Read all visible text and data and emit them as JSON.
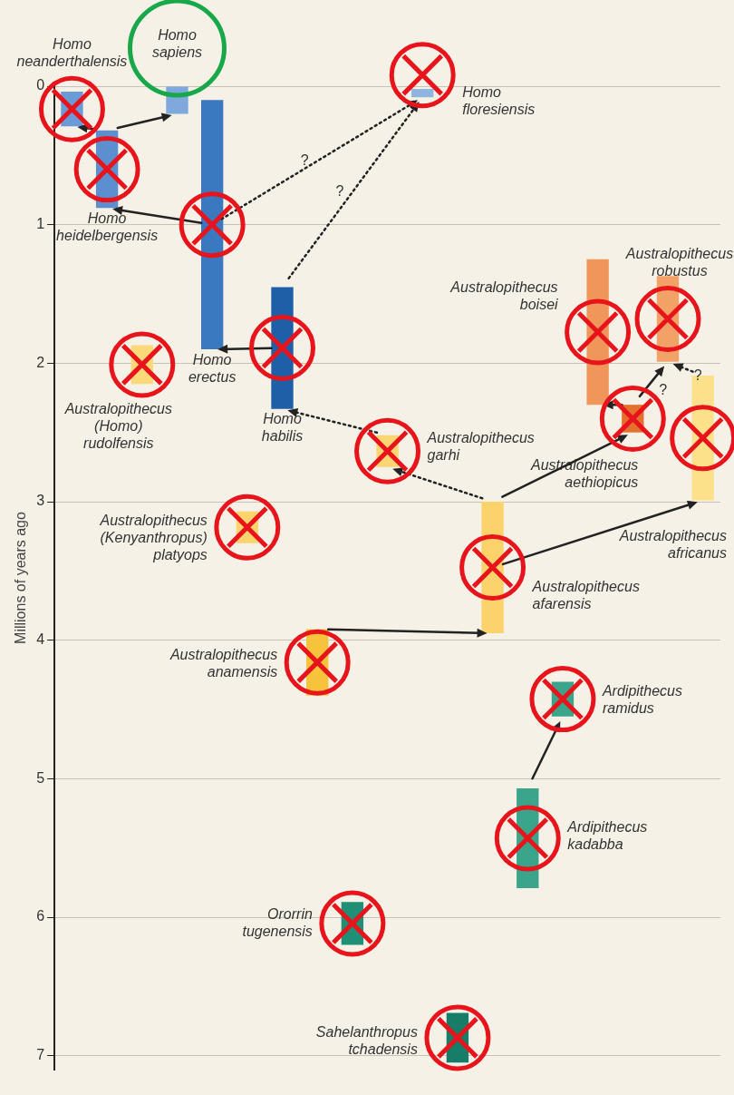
{
  "chart_data": {
    "type": "bar",
    "ylabel": "Millions of years ago",
    "categories": [
      null,
      null,
      null,
      null,
      null,
      null,
      null,
      null,
      null,
      null,
      null,
      null,
      null,
      null,
      null,
      null,
      null,
      null,
      null
    ],
    "series": [
      {
        "name": "Homo neanderthalensis",
        "color": "#6a9bd6",
        "values": [
          0.25,
          null,
          null,
          null,
          null,
          null,
          null,
          null,
          null,
          null,
          null,
          null,
          null,
          null,
          null,
          null,
          null,
          null,
          null
        ],
        "base": [
          0.04,
          null,
          null,
          null,
          null,
          null,
          null,
          null,
          null,
          null,
          null,
          null,
          null,
          null,
          null,
          null,
          null,
          null,
          null
        ]
      },
      {
        "name": "Homo heidelbergensis",
        "color": "#5b8fd0",
        "values": [
          null,
          0.56,
          null,
          null,
          null,
          null,
          null,
          null,
          null,
          null,
          null,
          null,
          null,
          null,
          null,
          null,
          null,
          null,
          null
        ],
        "base": [
          null,
          0.32,
          null,
          null,
          null,
          null,
          null,
          null,
          null,
          null,
          null,
          null,
          null,
          null,
          null,
          null,
          null,
          null,
          null
        ]
      },
      {
        "name": "Australopithecus (Homo) rudolfensis",
        "color": "#fbd878",
        "values": [
          null,
          null,
          0.28,
          null,
          null,
          null,
          null,
          null,
          null,
          null,
          null,
          null,
          null,
          null,
          null,
          null,
          null,
          null,
          null
        ],
        "base": [
          null,
          null,
          1.87,
          null,
          null,
          null,
          null,
          null,
          null,
          null,
          null,
          null,
          null,
          null,
          null,
          null,
          null,
          null,
          null
        ]
      },
      {
        "name": "Homo sapiens",
        "color": "#7fa9dc",
        "values": [
          null,
          null,
          null,
          0.2,
          null,
          null,
          null,
          null,
          null,
          null,
          null,
          null,
          null,
          null,
          null,
          null,
          null,
          null,
          null
        ],
        "base": [
          null,
          null,
          null,
          0,
          null,
          null,
          null,
          null,
          null,
          null,
          null,
          null,
          null,
          null,
          null,
          null,
          null,
          null,
          null
        ]
      },
      {
        "name": "Homo erectus",
        "color": "#3a78c0",
        "values": [
          null,
          null,
          null,
          null,
          1.8,
          null,
          null,
          null,
          null,
          null,
          null,
          null,
          null,
          null,
          null,
          null,
          null,
          null,
          null
        ],
        "base": [
          null,
          null,
          null,
          null,
          0.1,
          null,
          null,
          null,
          null,
          null,
          null,
          null,
          null,
          null,
          null,
          null,
          null,
          null,
          null
        ]
      },
      {
        "name": "Australopithecus (Kenyanthropus) platyops",
        "color": "#fbd46e",
        "values": [
          null,
          null,
          null,
          null,
          null,
          0.23,
          null,
          null,
          null,
          null,
          null,
          null,
          null,
          null,
          null,
          null,
          null,
          null,
          null
        ],
        "base": [
          null,
          null,
          null,
          null,
          null,
          3.07,
          null,
          null,
          null,
          null,
          null,
          null,
          null,
          null,
          null,
          null,
          null,
          null,
          null
        ]
      },
      {
        "name": "Homo habilis",
        "color": "#1f5fa8",
        "values": [
          null,
          null,
          null,
          null,
          null,
          null,
          0.88,
          null,
          null,
          null,
          null,
          null,
          null,
          null,
          null,
          null,
          null,
          null,
          null
        ],
        "base": [
          null,
          null,
          null,
          null,
          null,
          null,
          1.45,
          null,
          null,
          null,
          null,
          null,
          null,
          null,
          null,
          null,
          null,
          null,
          null
        ]
      },
      {
        "name": "Australopithecus anamensis",
        "color": "#f7c33a",
        "values": [
          null,
          null,
          null,
          null,
          null,
          null,
          null,
          0.48,
          null,
          null,
          null,
          null,
          null,
          null,
          null,
          null,
          null,
          null,
          null
        ],
        "base": [
          null,
          null,
          null,
          null,
          null,
          null,
          null,
          3.92,
          null,
          null,
          null,
          null,
          null,
          null,
          null,
          null,
          null,
          null,
          null
        ]
      },
      {
        "name": "Ororrin tugenensis",
        "color": "#1f8f76",
        "values": [
          null,
          null,
          null,
          null,
          null,
          null,
          null,
          null,
          0.31,
          null,
          null,
          null,
          null,
          null,
          null,
          null,
          null,
          null,
          null
        ],
        "base": [
          null,
          null,
          null,
          null,
          null,
          null,
          null,
          null,
          5.89,
          null,
          null,
          null,
          null,
          null,
          null,
          null,
          null,
          null,
          null
        ]
      },
      {
        "name": "Australopithecus garhi",
        "color": "#fcd672",
        "values": [
          null,
          null,
          null,
          null,
          null,
          null,
          null,
          null,
          null,
          0.23,
          null,
          null,
          null,
          null,
          null,
          null,
          null,
          null,
          null
        ],
        "base": [
          null,
          null,
          null,
          null,
          null,
          null,
          null,
          null,
          null,
          2.52,
          null,
          null,
          null,
          null,
          null,
          null,
          null,
          null,
          null
        ]
      },
      {
        "name": "Homo floresiensis",
        "color": "#8fb4e0",
        "values": [
          null,
          null,
          null,
          null,
          null,
          null,
          null,
          null,
          null,
          null,
          0.06,
          null,
          null,
          null,
          null,
          null,
          null,
          null,
          null
        ],
        "base": [
          null,
          null,
          null,
          null,
          null,
          null,
          null,
          null,
          null,
          null,
          0.02,
          null,
          null,
          null,
          null,
          null,
          null,
          null,
          null
        ]
      },
      {
        "name": "Sahelanthropus tchadensis",
        "color": "#167d69",
        "values": [
          null,
          null,
          null,
          null,
          null,
          null,
          null,
          null,
          null,
          null,
          null,
          0.36,
          null,
          null,
          null,
          null,
          null,
          null,
          null
        ],
        "base": [
          null,
          null,
          null,
          null,
          null,
          null,
          null,
          null,
          null,
          null,
          null,
          6.69,
          null,
          null,
          null,
          null,
          null,
          null,
          null
        ]
      },
      {
        "name": "Australopithecus afarensis",
        "color": "#fcd36a",
        "values": [
          null,
          null,
          null,
          null,
          null,
          null,
          null,
          null,
          null,
          null,
          null,
          null,
          0.95,
          null,
          null,
          null,
          null,
          null,
          null
        ],
        "base": [
          null,
          null,
          null,
          null,
          null,
          null,
          null,
          null,
          null,
          null,
          null,
          null,
          3.0,
          null,
          null,
          null,
          null,
          null,
          null
        ]
      },
      {
        "name": "Ardipithecus kadabba",
        "color": "#3aa58a",
        "values": [
          null,
          null,
          null,
          null,
          null,
          null,
          null,
          null,
          null,
          null,
          null,
          null,
          null,
          0.72,
          null,
          null,
          null,
          null,
          null
        ],
        "base": [
          null,
          null,
          null,
          null,
          null,
          null,
          null,
          null,
          null,
          null,
          null,
          null,
          null,
          5.07,
          null,
          null,
          null,
          null,
          null
        ]
      },
      {
        "name": "Ardipithecus ramidus",
        "color": "#3aa58a",
        "values": [
          null,
          null,
          null,
          null,
          null,
          null,
          null,
          null,
          null,
          null,
          null,
          null,
          null,
          null,
          0.25,
          null,
          null,
          null,
          null
        ],
        "base": [
          null,
          null,
          null,
          null,
          null,
          null,
          null,
          null,
          null,
          null,
          null,
          null,
          null,
          null,
          4.3,
          null,
          null,
          null,
          null
        ]
      },
      {
        "name": "Australopithecus boisei",
        "color": "#f0965a",
        "values": [
          null,
          null,
          null,
          null,
          null,
          null,
          null,
          null,
          null,
          null,
          null,
          null,
          null,
          null,
          null,
          1.05,
          null,
          null,
          null
        ],
        "base": [
          null,
          null,
          null,
          null,
          null,
          null,
          null,
          null,
          null,
          null,
          null,
          null,
          null,
          null,
          null,
          1.25,
          null,
          null,
          null
        ]
      },
      {
        "name": "Australopithecus aethiopicus",
        "color": "#e5702e",
        "values": [
          null,
          null,
          null,
          null,
          null,
          null,
          null,
          null,
          null,
          null,
          null,
          null,
          null,
          null,
          null,
          null,
          0.2,
          null,
          null
        ],
        "base": [
          null,
          null,
          null,
          null,
          null,
          null,
          null,
          null,
          null,
          null,
          null,
          null,
          null,
          null,
          null,
          null,
          2.3,
          null,
          null
        ]
      },
      {
        "name": "Australopithecus robustus",
        "color": "#f2a266",
        "values": [
          null,
          null,
          null,
          null,
          null,
          null,
          null,
          null,
          null,
          null,
          null,
          null,
          null,
          null,
          null,
          null,
          null,
          0.62,
          null
        ],
        "base": [
          null,
          null,
          null,
          null,
          null,
          null,
          null,
          null,
          null,
          null,
          null,
          null,
          null,
          null,
          null,
          null,
          null,
          1.37,
          null
        ]
      },
      {
        "name": "Australopithecus africanus",
        "color": "#fde08a",
        "values": [
          null,
          null,
          null,
          null,
          null,
          null,
          null,
          null,
          null,
          null,
          null,
          null,
          null,
          null,
          null,
          null,
          null,
          null,
          0.9
        ],
        "base": [
          null,
          null,
          null,
          null,
          null,
          null,
          null,
          null,
          null,
          null,
          null,
          null,
          null,
          null,
          null,
          null,
          null,
          null,
          2.09
        ]
      }
    ],
    "ylim": [
      7.1,
      0
    ],
    "yticks": [
      0,
      1,
      2,
      3,
      4,
      5,
      6,
      7
    ],
    "grid": "y",
    "annotations": [
      "?",
      "?",
      "?",
      "?"
    ]
  }
}
